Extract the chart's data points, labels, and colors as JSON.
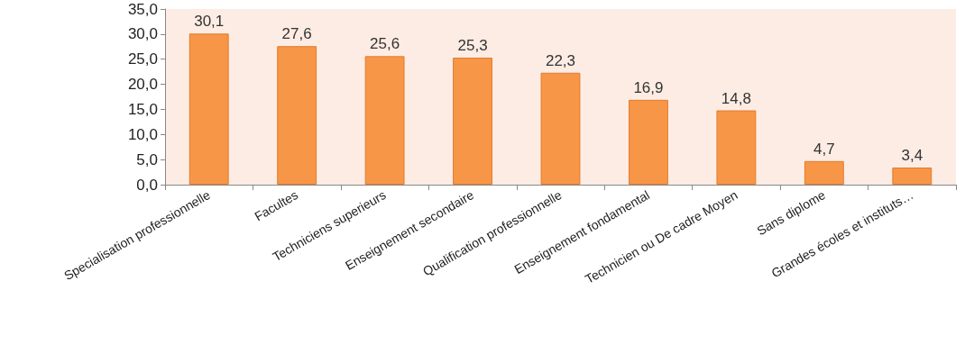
{
  "chart_data": {
    "type": "bar",
    "categories": [
      "Specialisation professionnelle",
      "Facultes",
      "Techniciens superieurs",
      "Enseignement secondaire",
      "Qualification professionnelle",
      "Enseignement fondamental",
      "Technicien ou De cadre Moyen",
      "Sans diplome",
      "Grandes écoles et instituts…"
    ],
    "values": [
      30.1,
      27.6,
      25.6,
      25.3,
      22.3,
      16.9,
      14.8,
      4.7,
      3.4
    ],
    "value_labels": [
      "30,1",
      "27,6",
      "25,6",
      "25,3",
      "22,3",
      "16,9",
      "14,8",
      "4,7",
      "3,4"
    ],
    "color": "#f79646",
    "ylim": [
      0,
      35
    ],
    "yticks": [
      {
        "value": 0,
        "label": "0,0"
      },
      {
        "value": 5,
        "label": "5,0"
      },
      {
        "value": 10,
        "label": "10,0"
      },
      {
        "value": 15,
        "label": "15,0"
      },
      {
        "value": 20,
        "label": "20,0"
      },
      {
        "value": 25,
        "label": "25,0"
      },
      {
        "value": 30,
        "label": "30,0"
      },
      {
        "value": 35,
        "label": "35,0"
      }
    ],
    "grid": false
  }
}
